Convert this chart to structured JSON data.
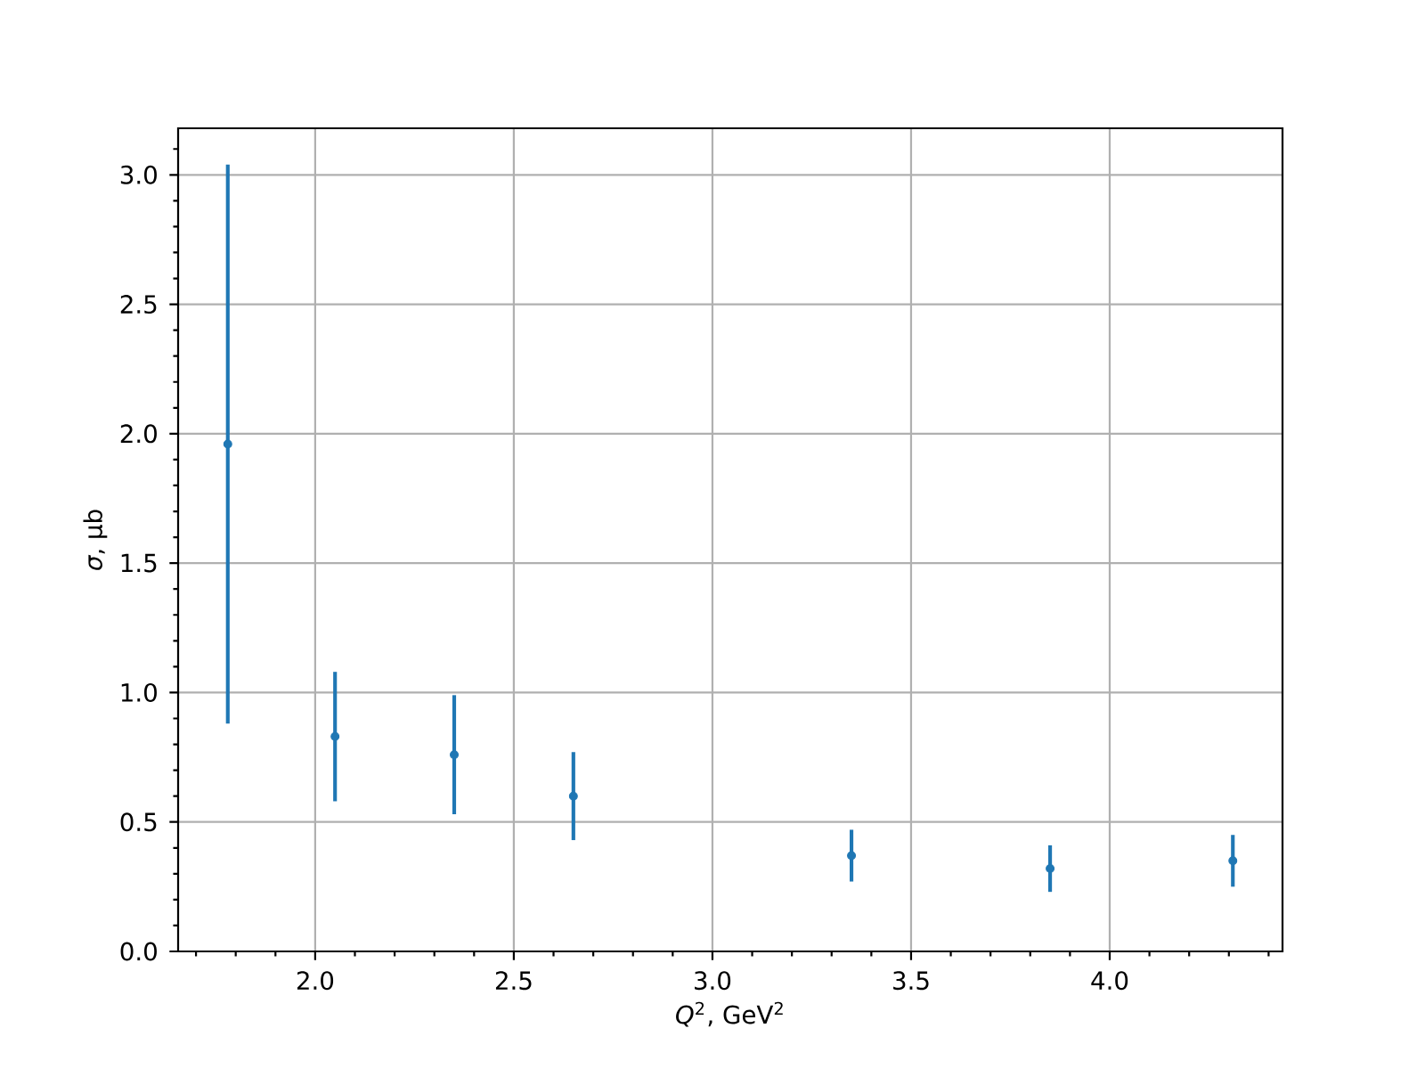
{
  "chart_data": {
    "type": "scatter",
    "xlabel": "*Q*$^{2}$, GeV$^{2}$",
    "ylabel": "*σ*, μb",
    "x": [
      1.78,
      2.05,
      2.35,
      2.65,
      3.35,
      3.85,
      4.31
    ],
    "values": [
      1.96,
      0.83,
      0.76,
      0.6,
      0.37,
      0.32,
      0.35
    ],
    "errors": [
      1.08,
      0.25,
      0.23,
      0.17,
      0.1,
      0.09,
      0.1
    ],
    "color": "#1f77b4",
    "marker": "circle",
    "grid": true,
    "xlim": [
      1.655,
      4.435
    ],
    "ylim": [
      0,
      3.18
    ],
    "xticks": [
      {
        "value": 1.7,
        "label": null
      },
      {
        "value": 1.8,
        "label": null
      },
      {
        "value": 1.9,
        "label": null
      },
      {
        "value": 2,
        "label": "2.0"
      },
      {
        "value": 2.1,
        "label": null
      },
      {
        "value": 2.2,
        "label": null
      },
      {
        "value": 2.3,
        "label": null
      },
      {
        "value": 2.4,
        "label": null
      },
      {
        "value": 2.5,
        "label": "2.5"
      },
      {
        "value": 2.6,
        "label": null
      },
      {
        "value": 2.7,
        "label": null
      },
      {
        "value": 2.8,
        "label": null
      },
      {
        "value": 2.9,
        "label": null
      },
      {
        "value": 3,
        "label": "3.0"
      },
      {
        "value": 3.1,
        "label": null
      },
      {
        "value": 3.2,
        "label": null
      },
      {
        "value": 3.3,
        "label": null
      },
      {
        "value": 3.4,
        "label": null
      },
      {
        "value": 3.5,
        "label": "3.5"
      },
      {
        "value": 3.6,
        "label": null
      },
      {
        "value": 3.7,
        "label": null
      },
      {
        "value": 3.8,
        "label": null
      },
      {
        "value": 3.9,
        "label": null
      },
      {
        "value": 4,
        "label": "4.0"
      },
      {
        "value": 4.1,
        "label": null
      },
      {
        "value": 4.2,
        "label": null
      },
      {
        "value": 4.3,
        "label": null
      },
      {
        "value": 4.4,
        "label": null
      }
    ],
    "yticks": [
      {
        "value": 0,
        "label": "0.0"
      },
      {
        "value": 0.1,
        "label": null
      },
      {
        "value": 0.2,
        "label": null
      },
      {
        "value": 0.3,
        "label": null
      },
      {
        "value": 0.4,
        "label": null
      },
      {
        "value": 0.5,
        "label": "0.5"
      },
      {
        "value": 0.6,
        "label": null
      },
      {
        "value": 0.7,
        "label": null
      },
      {
        "value": 0.8,
        "label": null
      },
      {
        "value": 0.9,
        "label": null
      },
      {
        "value": 1,
        "label": "1.0"
      },
      {
        "value": 1.1,
        "label": null
      },
      {
        "value": 1.2,
        "label": null
      },
      {
        "value": 1.3,
        "label": null
      },
      {
        "value": 1.4,
        "label": null
      },
      {
        "value": 1.5,
        "label": "1.5"
      },
      {
        "value": 1.6,
        "label": null
      },
      {
        "value": 1.7,
        "label": null
      },
      {
        "value": 1.8,
        "label": null
      },
      {
        "value": 1.9,
        "label": null
      },
      {
        "value": 2,
        "label": "2.0"
      },
      {
        "value": 2.1,
        "label": null
      },
      {
        "value": 2.2,
        "label": null
      },
      {
        "value": 2.3,
        "label": null
      },
      {
        "value": 2.4,
        "label": null
      },
      {
        "value": 2.5,
        "label": "2.5"
      },
      {
        "value": 2.6,
        "label": null
      },
      {
        "value": 2.7,
        "label": null
      },
      {
        "value": 2.8,
        "label": null
      },
      {
        "value": 2.9,
        "label": null
      },
      {
        "value": 3,
        "label": "3.0"
      },
      {
        "value": 3.1,
        "label": null
      }
    ]
  }
}
